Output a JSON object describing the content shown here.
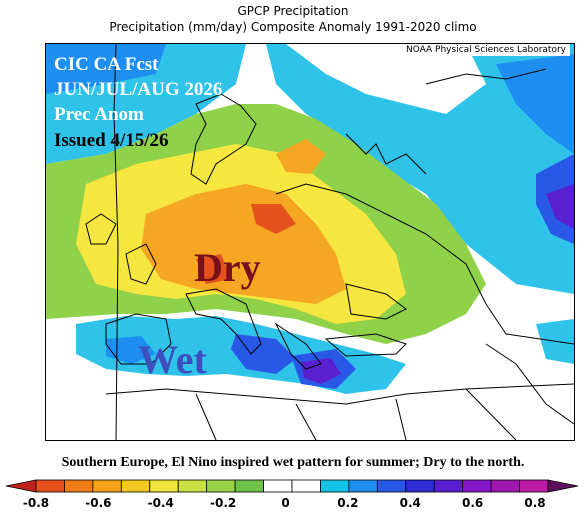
{
  "title_line1": "GPCP Precipitation",
  "title_line2": "Precipitation (mm/day) Composite Anomaly 1991-2020 climo",
  "credit": "NOAA Physical Sciences Laboratory",
  "overlay": {
    "line1": "CIC CA Fcst",
    "line2": "JUN/JUL/AUG 2026",
    "line3": "Prec Anom",
    "line4": "Issued 4/15/26"
  },
  "labels": {
    "dry": "Dry",
    "wet": "Wet"
  },
  "caption": "Southern Europe, El Nino inspired wet pattern for summer; Dry to the north.",
  "colorbar": {
    "ticks": [
      "-0.8",
      "-0.6",
      "-0.4",
      "-0.2",
      "0",
      "0.2",
      "0.4",
      "0.6",
      "0.8"
    ],
    "colors": [
      "#c0221b",
      "#e4511c",
      "#f07d18",
      "#f5a218",
      "#f2c71f",
      "#f0e33c",
      "#c9e044",
      "#9ad24a",
      "#6ec24a",
      "#ffffff",
      "#ffffff",
      "#14c2e6",
      "#1e8ff0",
      "#2a58e6",
      "#2d2ed6",
      "#5a1fd1",
      "#8418c8",
      "#a017b0",
      "#bd1aa6",
      "#5e0f5e"
    ]
  },
  "map_colors": {
    "dry_light": "#f5e640",
    "dry_mid": "#f5a623",
    "dry_strong": "#e4511c",
    "green": "#8fd24a",
    "wet_light": "#2fc3ea",
    "wet_mid": "#2a58e6",
    "wet_strong": "#5a1fd1"
  }
}
